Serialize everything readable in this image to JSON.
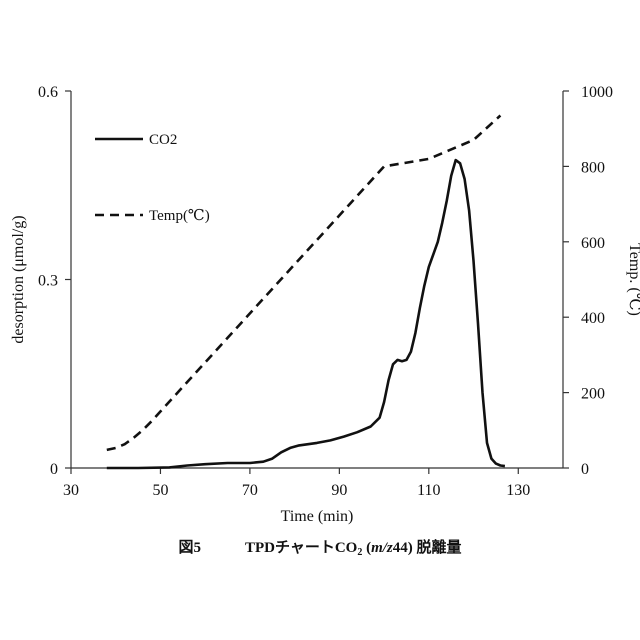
{
  "chart_data": {
    "type": "line",
    "title": "",
    "xlabel": "Time (min)",
    "ylabel": "desorption (μmol/g)",
    "y2label": "Temp. (℃)",
    "xlim": [
      30,
      140
    ],
    "ylim": [
      0,
      0.6
    ],
    "y2lim": [
      0,
      1000
    ],
    "xticks": [
      "30",
      "50",
      "70",
      "90",
      "110",
      "130"
    ],
    "yticks": [
      "0",
      "0.3",
      "0.6"
    ],
    "y2ticks": [
      "0",
      "200",
      "400",
      "600",
      "800",
      "1000"
    ],
    "grid": false,
    "legend": "top-left",
    "series": [
      {
        "name": "CO2",
        "axis": "left",
        "style": "solid",
        "x": [
          38,
          45,
          52,
          56,
          60,
          65,
          70,
          73,
          75,
          77,
          79,
          81,
          85,
          88,
          91,
          94,
          97,
          99,
          100,
          101,
          102,
          103,
          104,
          105,
          106,
          107,
          108,
          109,
          110,
          111,
          112,
          113,
          114,
          115,
          116,
          117,
          118,
          119,
          120,
          121,
          122,
          123,
          124,
          125,
          126,
          127
        ],
        "values": [
          0,
          0,
          0.001,
          0.004,
          0.006,
          0.008,
          0.008,
          0.01,
          0.015,
          0.025,
          0.032,
          0.036,
          0.04,
          0.044,
          0.05,
          0.057,
          0.066,
          0.08,
          0.105,
          0.14,
          0.165,
          0.172,
          0.17,
          0.172,
          0.185,
          0.215,
          0.255,
          0.29,
          0.32,
          0.34,
          0.36,
          0.39,
          0.425,
          0.465,
          0.49,
          0.485,
          0.46,
          0.41,
          0.33,
          0.23,
          0.12,
          0.04,
          0.015,
          0.007,
          0.004,
          0.003
        ]
      },
      {
        "name": "Temp(℃)",
        "axis": "right",
        "style": "dashed",
        "x": [
          38,
          40,
          42,
          44,
          46,
          48,
          50,
          55,
          60,
          70,
          80,
          90,
          100,
          110,
          120,
          126
        ],
        "values": [
          48,
          53,
          63,
          80,
          100,
          124,
          150,
          215,
          280,
          410,
          540,
          670,
          800,
          820,
          870,
          935
        ]
      }
    ]
  },
  "caption": {
    "prefix": "図5",
    "part1": "TPDチャートCO",
    "sub": "2",
    "part2": " (",
    "italic": "m/z",
    "part3": "44) 脱離量"
  }
}
